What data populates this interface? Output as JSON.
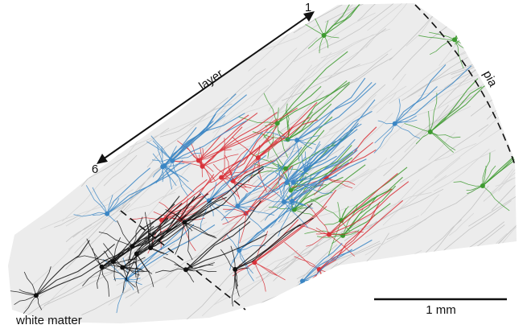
{
  "labels": {
    "layer_top": "1",
    "layer_axis": "layer",
    "layer_bottom": "6",
    "pia": "pia",
    "white_matter": "white matter",
    "scale_bar": "1 mm"
  }
}
